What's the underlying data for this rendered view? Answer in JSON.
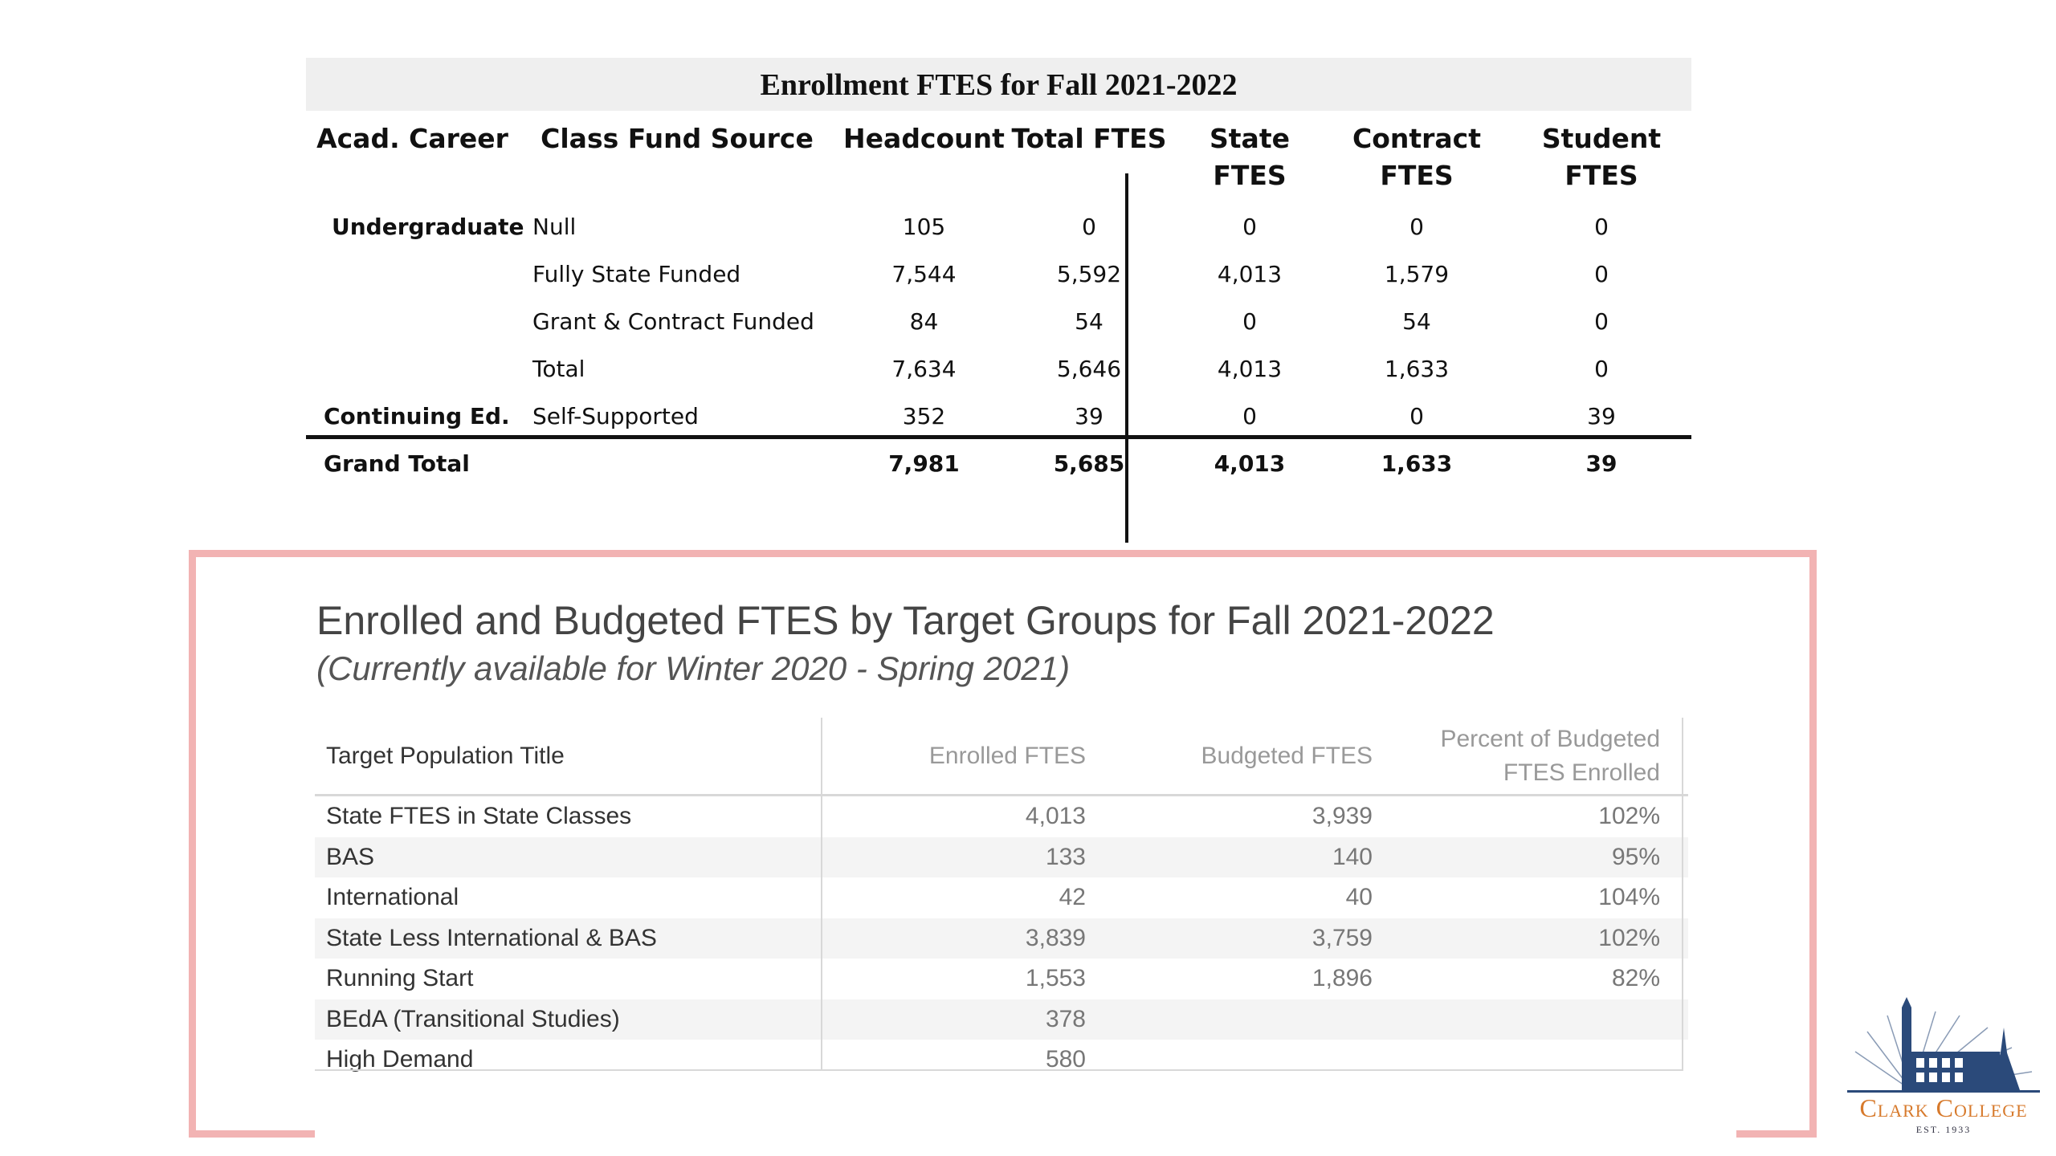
{
  "enrollment_table": {
    "title": "Enrollment FTES for Fall 2021-2022",
    "headers": {
      "career": "Acad. Career",
      "source": "Class Fund Source",
      "headcount": "Headcount",
      "total": "Total FTES",
      "state": "State FTES",
      "contract": "Contract FTES",
      "student": "Student FTES"
    },
    "rows": [
      {
        "career": "Undergraduate",
        "source": "Null",
        "headcount": "105",
        "total": "0",
        "state": "0",
        "contract": "0",
        "student": "0"
      },
      {
        "career": "",
        "source": "Fully State Funded",
        "headcount": "7,544",
        "total": "5,592",
        "state": "4,013",
        "contract": "1,579",
        "student": "0"
      },
      {
        "career": "",
        "source": "Grant & Contract Funded",
        "headcount": "84",
        "total": "54",
        "state": "0",
        "contract": "54",
        "student": "0"
      },
      {
        "career": "",
        "source": "Total",
        "headcount": "7,634",
        "total": "5,646",
        "state": "4,013",
        "contract": "1,633",
        "student": "0"
      },
      {
        "career": "Continuing Ed.",
        "source": "Self-Supported",
        "headcount": "352",
        "total": "39",
        "state": "0",
        "contract": "0",
        "student": "39"
      }
    ],
    "grand_total": {
      "label": "Grand Total",
      "headcount": "7,981",
      "total": "5,685",
      "state": "4,013",
      "contract": "1,633",
      "student": "39"
    }
  },
  "target_groups": {
    "title": "Enrolled and Budgeted FTES by Target Groups for Fall 2021-2022",
    "subtitle": "(Currently available for Winter 2020 - Spring 2021)",
    "headers": {
      "name": "Target Population Title",
      "enrolled": "Enrolled FTES",
      "budgeted": "Budgeted FTES",
      "percent": "Percent of Budgeted FTES Enrolled"
    },
    "rows": [
      {
        "name": "State FTES in State Classes",
        "enrolled": "4,013",
        "budgeted": "3,939",
        "percent": "102%"
      },
      {
        "name": "BAS",
        "enrolled": "133",
        "budgeted": "140",
        "percent": "95%"
      },
      {
        "name": "International",
        "enrolled": "42",
        "budgeted": "40",
        "percent": "104%"
      },
      {
        "name": "State Less International & BAS",
        "enrolled": "3,839",
        "budgeted": "3,759",
        "percent": "102%"
      },
      {
        "name": "Running Start",
        "enrolled": "1,553",
        "budgeted": "1,896",
        "percent": "82%"
      },
      {
        "name": "BEdA (Transitional Studies)",
        "enrolled": "378",
        "budgeted": "",
        "percent": ""
      },
      {
        "name": "High Demand",
        "enrolled": "580",
        "budgeted": "",
        "percent": ""
      }
    ]
  },
  "logo": {
    "name": "Clark College",
    "est": "EST. 1933"
  },
  "colors": {
    "frame": "#f2b3b3",
    "logo_orange": "#d77a2c",
    "logo_blue": "#2b4a7a"
  }
}
